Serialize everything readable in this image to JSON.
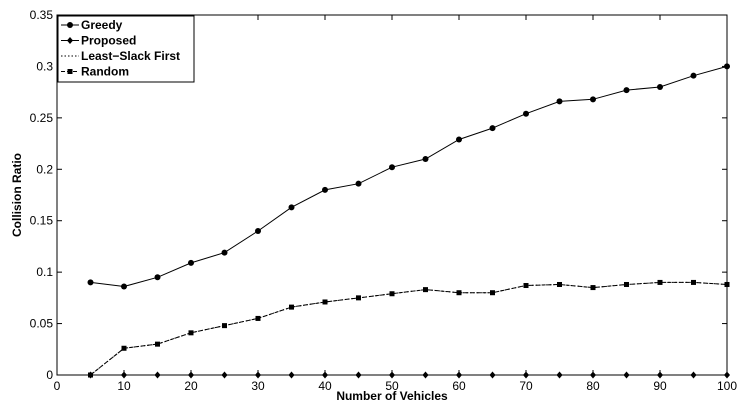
{
  "chart_data": {
    "type": "line",
    "xlabel": "Number of Vehicles",
    "ylabel": "Collision Ratio",
    "xlim": [
      0,
      100
    ],
    "ylim": [
      0,
      0.35
    ],
    "xticks": [
      0,
      10,
      20,
      30,
      40,
      50,
      60,
      70,
      80,
      90,
      100
    ],
    "yticks": [
      0,
      0.05,
      0.1,
      0.15,
      0.2,
      0.25,
      0.3,
      0.35
    ],
    "xtick_labels": [
      "0",
      "10",
      "20",
      "30",
      "40",
      "50",
      "60",
      "70",
      "80",
      "90",
      "100"
    ],
    "ytick_labels": [
      "0",
      "0.05",
      "0.1",
      "0.15",
      "0.2",
      "0.25",
      "0.3",
      "0.35"
    ],
    "grid": false,
    "legend_position": "top-left",
    "x": [
      5,
      10,
      15,
      20,
      25,
      30,
      35,
      40,
      45,
      50,
      55,
      60,
      65,
      70,
      75,
      80,
      85,
      90,
      95,
      100
    ],
    "series": [
      {
        "name": "Greedy",
        "marker": "circle",
        "linestyle": "solid",
        "values": [
          0.09,
          0.086,
          0.095,
          0.109,
          0.119,
          0.14,
          0.163,
          0.18,
          0.186,
          0.202,
          0.21,
          0.229,
          0.24,
          0.254,
          0.266,
          0.268,
          0.277,
          0.28,
          0.291,
          0.3
        ]
      },
      {
        "name": "Proposed",
        "marker": "diamond",
        "linestyle": "solid",
        "values": [
          0,
          0,
          0,
          0,
          0,
          0,
          0,
          0,
          0,
          0,
          0,
          0,
          0,
          0,
          0,
          0,
          0,
          0,
          0,
          0
        ]
      },
      {
        "name": "Least−Slack First",
        "marker": "none",
        "linestyle": "dotted",
        "values": [
          0,
          0.026,
          0.03,
          0.041,
          0.048,
          0.055,
          0.066,
          0.071,
          0.075,
          0.079,
          0.083,
          0.08,
          0.08,
          0.087,
          0.088,
          0.085,
          0.088,
          0.09,
          0.09,
          0.088
        ]
      },
      {
        "name": "Random",
        "marker": "square",
        "linestyle": "dashed",
        "values": [
          0,
          0.026,
          0.03,
          0.041,
          0.048,
          0.055,
          0.066,
          0.071,
          0.075,
          0.079,
          0.083,
          0.08,
          0.08,
          0.087,
          0.088,
          0.085,
          0.088,
          0.09,
          0.09,
          0.088
        ]
      }
    ]
  }
}
